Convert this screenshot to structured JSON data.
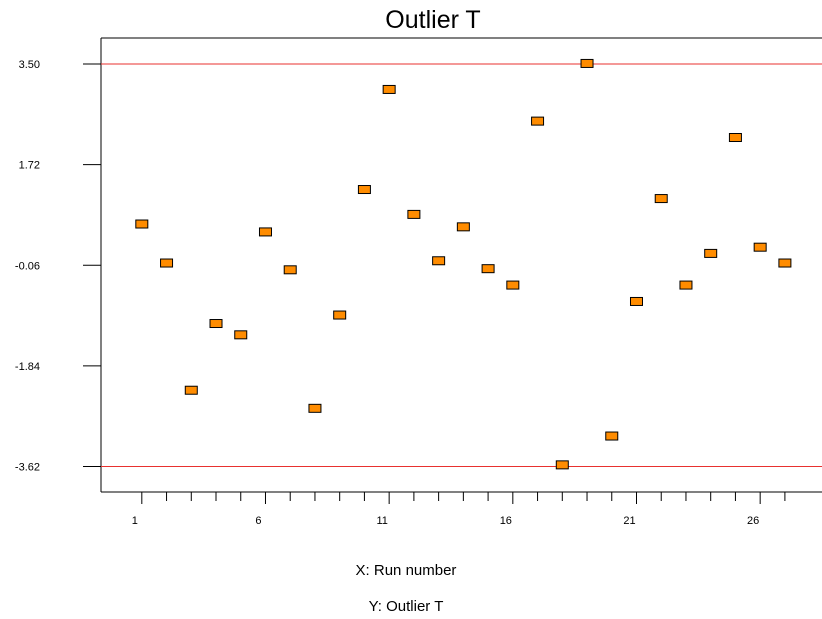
{
  "chart_data": {
    "type": "scatter",
    "title": "Outlier T",
    "xlabel": "X: Run number",
    "ylabel": "Y: Outlier T",
    "x": [
      1,
      2,
      3,
      4,
      5,
      6,
      7,
      8,
      9,
      10,
      11,
      12,
      13,
      14,
      15,
      16,
      17,
      18,
      19,
      20,
      21,
      22,
      23,
      24,
      25,
      26,
      27
    ],
    "y": [
      0.67,
      -0.02,
      -2.27,
      -1.09,
      -1.29,
      0.53,
      -0.14,
      -2.59,
      -0.94,
      1.28,
      3.05,
      0.84,
      0.02,
      0.62,
      -0.12,
      -0.41,
      2.49,
      -3.59,
      3.51,
      -3.08,
      -0.7,
      1.12,
      -0.41,
      0.15,
      2.2,
      0.26,
      -0.02
    ],
    "xlim": [
      -0.65,
      28.5
    ],
    "ylim": [
      -4.07,
      3.96
    ],
    "x_ticks": [
      1,
      6,
      11,
      16,
      21,
      26
    ],
    "y_ticks": [
      3.5,
      1.72,
      -0.06,
      -1.84,
      -3.62
    ],
    "y_tick_labels": [
      "3.50",
      "1.72",
      "-0.06",
      "-1.84",
      "-3.62"
    ],
    "control_limits": [
      3.5,
      -3.62
    ],
    "limit_color": "#e8312f",
    "marker_color": "#ff8c00",
    "marker_edge_color": "#000000",
    "grid": false,
    "legend": "none"
  }
}
